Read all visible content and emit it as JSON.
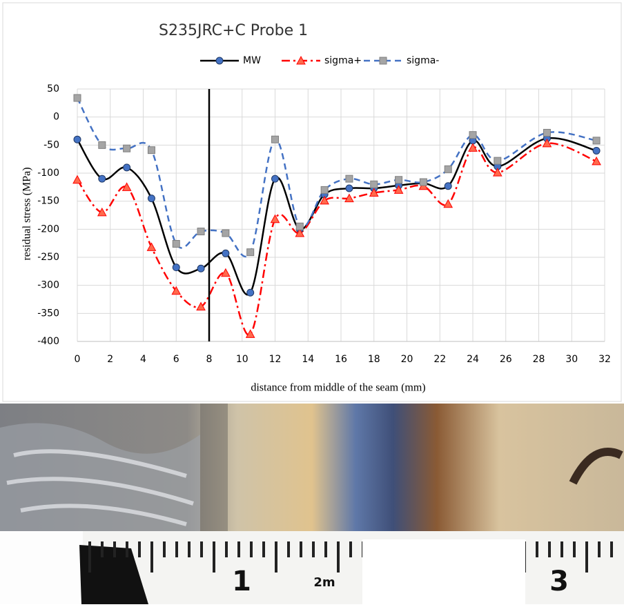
{
  "chart_data": {
    "type": "line",
    "title": "S235JRC+C Probe 1",
    "x_label": "distance from middle of the seam (mm)",
    "y_label": "residual stress (MPa)",
    "x": [
      0,
      1.5,
      3,
      4.5,
      6,
      7.5,
      9,
      10.5,
      12,
      13.5,
      15,
      16.5,
      18,
      19.5,
      21,
      22.5,
      24,
      25.5,
      28.5,
      31.5
    ],
    "series": [
      {
        "name": "MW",
        "color": "#000000",
        "marker": "circle",
        "marker_color": "#4472c4",
        "dash": "solid",
        "values": [
          -40,
          -110,
          -90,
          -145,
          -268,
          -270,
          -243,
          -313,
          -110,
          -200,
          -138,
          -127,
          -127,
          -122,
          -118,
          -123,
          -42,
          -88,
          -38,
          -60
        ]
      },
      {
        "name": "sigma+",
        "color": "#ff0000",
        "marker": "triangle",
        "marker_color": "#ff6a4d",
        "dash": "dashdot",
        "values": [
          -112,
          -170,
          -125,
          -232,
          -310,
          -338,
          -278,
          -387,
          -182,
          -207,
          -149,
          -145,
          -135,
          -130,
          -123,
          -155,
          -55,
          -99,
          -47,
          -79
        ]
      },
      {
        "name": "sigma-",
        "color": "#4472c4",
        "marker": "square",
        "marker_color": "#a5a5a5",
        "dash": "dash",
        "values": [
          34,
          -50,
          -56,
          -59,
          -226,
          -204,
          -207,
          -241,
          -40,
          -195,
          -130,
          -110,
          -120,
          -112,
          -116,
          -93,
          -32,
          -78,
          -28,
          -42
        ]
      }
    ],
    "xlim": [
      0,
      32
    ],
    "xticks": [
      0,
      2,
      4,
      6,
      8,
      10,
      12,
      14,
      16,
      18,
      20,
      22,
      24,
      26,
      28,
      30,
      32
    ],
    "ylim": [
      -400,
      50
    ],
    "yticks": [
      50,
      0,
      -50,
      -100,
      -150,
      -200,
      -250,
      -300,
      -350,
      -400
    ],
    "grid": true,
    "legend": "top",
    "vline_x": 8
  },
  "photo": {
    "ruler_labels": [
      "1",
      "2m",
      "3"
    ]
  }
}
